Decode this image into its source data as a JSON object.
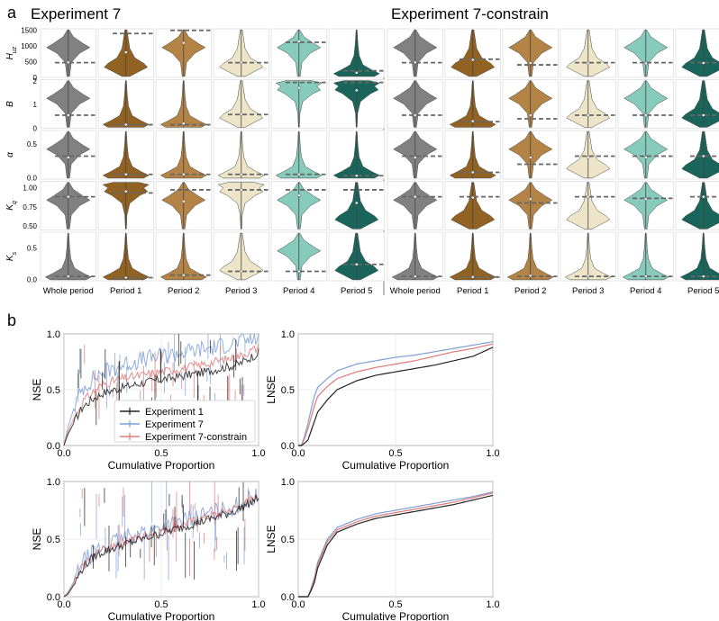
{
  "panel_a": {
    "label": "a",
    "left_title": "Experiment 7",
    "right_title": "Experiment 7-constrain",
    "columns": [
      "Whole period",
      "Period 1",
      "Period 2",
      "Period 3",
      "Period 4",
      "Period 5"
    ],
    "column_colors": [
      "#7a7a7a",
      "#8c5a16",
      "#b07d3c",
      "#ede3c4",
      "#80c8b8",
      "#0e5d52"
    ],
    "rows": [
      {
        "label": "H",
        "sub": "uz",
        "ticks": [
          "1500",
          "1000",
          "500",
          "0"
        ],
        "tick_values": [
          1500,
          1000,
          500,
          0
        ],
        "ymin": 0,
        "ymax": 1550
      },
      {
        "label": "B",
        "sub": "",
        "ticks": [
          "2",
          "1",
          "0"
        ],
        "tick_values": [
          2,
          1,
          0
        ],
        "ymin": 0,
        "ymax": 2.05
      },
      {
        "label": "α",
        "sub": "",
        "ticks": [
          "0.5",
          "0.0"
        ],
        "tick_values": [
          0.5,
          0.0
        ],
        "ymin": -0.02,
        "ymax": 0.7
      },
      {
        "label": "K",
        "sub": "q",
        "ticks": [
          "1.00",
          "0.75",
          "0.50"
        ],
        "tick_values": [
          1.0,
          0.75,
          0.5
        ],
        "ymin": 0.45,
        "ymax": 1.08
      },
      {
        "label": "K",
        "sub": "s",
        "ticks": [
          "0.5",
          "0.0"
        ],
        "tick_values": [
          0.5,
          0.0
        ],
        "ymin": -0.02,
        "ymax": 0.75
      }
    ]
  },
  "panel_b": {
    "label": "b",
    "legend": [
      "Experiment 1",
      "Experiment 7",
      "Experiment 7-constrain"
    ],
    "series_colors": [
      "#222222",
      "#7f9fd6",
      "#e07a7a"
    ],
    "x_label": "Cumulative Proportion",
    "y_label_nse": "NSE",
    "y_label_lnse": "LNSE",
    "x_ticks": [
      "0.0",
      "0.5",
      "1.0"
    ],
    "y_ticks": [
      "0.0",
      "0.5",
      "1.0"
    ]
  },
  "chart_data": [
    {
      "type": "violin",
      "title": "Experiment 7",
      "categories": [
        "Whole period",
        "Period 1",
        "Period 2",
        "Period 3",
        "Period 4",
        "Period 5"
      ],
      "rows": [
        "Huz",
        "B",
        "α",
        "Kq",
        "Ks"
      ],
      "medians": [
        [
          480,
          800,
          1100,
          480,
          1150,
          150
        ],
        [
          0.55,
          0.15,
          0.2,
          0.6,
          1.7,
          1.6
        ],
        [
          0.3,
          0.05,
          0.05,
          0.05,
          0.05,
          0.03
        ],
        [
          0.88,
          0.95,
          0.82,
          0.97,
          0.9,
          0.8
        ],
        [
          0.05,
          0.03,
          0.07,
          0.13,
          0.13,
          0.24
        ]
      ],
      "reference_lines": [
        [
          470,
          1400,
          1500,
          470,
          1120,
          210
        ],
        [
          0.55,
          0.15,
          0.15,
          0.58,
          1.93,
          1.93
        ],
        [
          0.32,
          0.05,
          0.05,
          0.05,
          0.05,
          0.03
        ],
        [
          0.88,
          0.93,
          0.97,
          0.97,
          0.97,
          0.97
        ],
        [
          0.05,
          0.03,
          0.07,
          0.13,
          0.13,
          0.24
        ]
      ]
    },
    {
      "type": "violin",
      "title": "Experiment 7-constrain",
      "categories": [
        "Whole period",
        "Period 1",
        "Period 2",
        "Period 3",
        "Period 4",
        "Period 5"
      ],
      "rows": [
        "Huz",
        "B",
        "α",
        "Kq",
        "Ks"
      ],
      "medians": [
        [
          480,
          560,
          460,
          450,
          450,
          460
        ],
        [
          0.55,
          0.3,
          0.55,
          0.55,
          0.55,
          0.55
        ],
        [
          0.3,
          0.08,
          0.3,
          0.3,
          0.3,
          0.32
        ],
        [
          0.88,
          0.87,
          0.85,
          0.88,
          0.85,
          0.88
        ],
        [
          0.05,
          0.04,
          0.06,
          0.06,
          0.05,
          0.05
        ]
      ],
      "reference_lines": [
        [
          470,
          580,
          400,
          470,
          470,
          470
        ],
        [
          0.55,
          0.28,
          0.4,
          0.55,
          0.55,
          0.55
        ],
        [
          0.32,
          0.08,
          0.2,
          0.32,
          0.32,
          0.32
        ],
        [
          0.88,
          0.88,
          0.8,
          0.88,
          0.86,
          0.88
        ],
        [
          0.05,
          0.04,
          0.05,
          0.05,
          0.05,
          0.05
        ]
      ]
    },
    {
      "type": "line",
      "xlabel": "Cumulative Proportion",
      "ylabel": "NSE",
      "xlim": [
        0,
        1
      ],
      "ylim": [
        0,
        1
      ],
      "x": [
        0,
        0.02,
        0.05,
        0.08,
        0.1,
        0.15,
        0.2,
        0.3,
        0.4,
        0.5,
        0.6,
        0.7,
        0.8,
        0.9,
        1.0
      ],
      "series": [
        {
          "name": "Experiment 1",
          "values": [
            0,
            0.1,
            0.2,
            0.3,
            0.35,
            0.42,
            0.47,
            0.52,
            0.56,
            0.59,
            0.62,
            0.65,
            0.69,
            0.73,
            0.83
          ]
        },
        {
          "name": "Experiment 7",
          "values": [
            0,
            0.16,
            0.33,
            0.45,
            0.52,
            0.6,
            0.66,
            0.72,
            0.77,
            0.8,
            0.83,
            0.86,
            0.89,
            0.93,
            0.97
          ]
        },
        {
          "name": "Experiment 7-constrain",
          "values": [
            0,
            0.12,
            0.24,
            0.34,
            0.4,
            0.48,
            0.55,
            0.6,
            0.63,
            0.66,
            0.69,
            0.72,
            0.76,
            0.8,
            0.88
          ]
        }
      ]
    },
    {
      "type": "line",
      "xlabel": "Cumulative Proportion",
      "ylabel": "LNSE",
      "xlim": [
        0,
        1
      ],
      "ylim": [
        0,
        1
      ],
      "x": [
        0,
        0.02,
        0.05,
        0.08,
        0.1,
        0.15,
        0.2,
        0.3,
        0.4,
        0.5,
        0.6,
        0.7,
        0.8,
        0.9,
        1.0
      ],
      "series": [
        {
          "name": "Experiment 1",
          "values": [
            0,
            0,
            0.05,
            0.2,
            0.3,
            0.41,
            0.5,
            0.58,
            0.63,
            0.66,
            0.69,
            0.72,
            0.76,
            0.8,
            0.88
          ]
        },
        {
          "name": "Experiment 7",
          "values": [
            0,
            0,
            0.2,
            0.43,
            0.52,
            0.6,
            0.67,
            0.73,
            0.76,
            0.79,
            0.81,
            0.84,
            0.87,
            0.9,
            0.93
          ]
        },
        {
          "name": "Experiment 7-constrain",
          "values": [
            0,
            0,
            0.15,
            0.34,
            0.44,
            0.53,
            0.6,
            0.66,
            0.7,
            0.73,
            0.76,
            0.8,
            0.84,
            0.87,
            0.91
          ]
        }
      ]
    },
    {
      "type": "line",
      "xlabel": "Cumulative Proportion",
      "ylabel": "NSE",
      "xlim": [
        0,
        1
      ],
      "ylim": [
        0,
        1
      ],
      "x": [
        0,
        0.02,
        0.05,
        0.08,
        0.1,
        0.15,
        0.2,
        0.3,
        0.4,
        0.5,
        0.6,
        0.7,
        0.8,
        0.9,
        1.0
      ],
      "series": [
        {
          "name": "Experiment 1",
          "values": [
            0,
            0.02,
            0.1,
            0.2,
            0.26,
            0.34,
            0.39,
            0.45,
            0.5,
            0.55,
            0.6,
            0.65,
            0.7,
            0.76,
            0.86
          ]
        },
        {
          "name": "Experiment 7",
          "values": [
            0,
            0.04,
            0.13,
            0.24,
            0.3,
            0.38,
            0.43,
            0.5,
            0.56,
            0.6,
            0.65,
            0.7,
            0.74,
            0.8,
            0.88
          ]
        },
        {
          "name": "Experiment 7-constrain",
          "values": [
            0,
            0.03,
            0.11,
            0.22,
            0.27,
            0.35,
            0.41,
            0.47,
            0.52,
            0.57,
            0.62,
            0.67,
            0.72,
            0.78,
            0.87
          ]
        }
      ]
    },
    {
      "type": "line",
      "xlabel": "Cumulative Proportion",
      "ylabel": "LNSE",
      "xlim": [
        0,
        1
      ],
      "ylim": [
        0,
        1
      ],
      "x": [
        0,
        0.02,
        0.05,
        0.08,
        0.1,
        0.15,
        0.2,
        0.3,
        0.4,
        0.5,
        0.6,
        0.7,
        0.8,
        0.9,
        1.0
      ],
      "series": [
        {
          "name": "Experiment 1",
          "values": [
            0,
            0,
            0,
            0.1,
            0.25,
            0.45,
            0.56,
            0.63,
            0.68,
            0.71,
            0.74,
            0.77,
            0.8,
            0.84,
            0.88
          ]
        },
        {
          "name": "Experiment 7",
          "values": [
            0,
            0,
            0,
            0.14,
            0.3,
            0.5,
            0.6,
            0.67,
            0.72,
            0.75,
            0.78,
            0.81,
            0.84,
            0.87,
            0.91
          ]
        },
        {
          "name": "Experiment 7-constrain",
          "values": [
            0,
            0,
            0,
            0.12,
            0.28,
            0.48,
            0.58,
            0.65,
            0.7,
            0.73,
            0.76,
            0.79,
            0.82,
            0.86,
            0.9
          ]
        }
      ]
    }
  ]
}
